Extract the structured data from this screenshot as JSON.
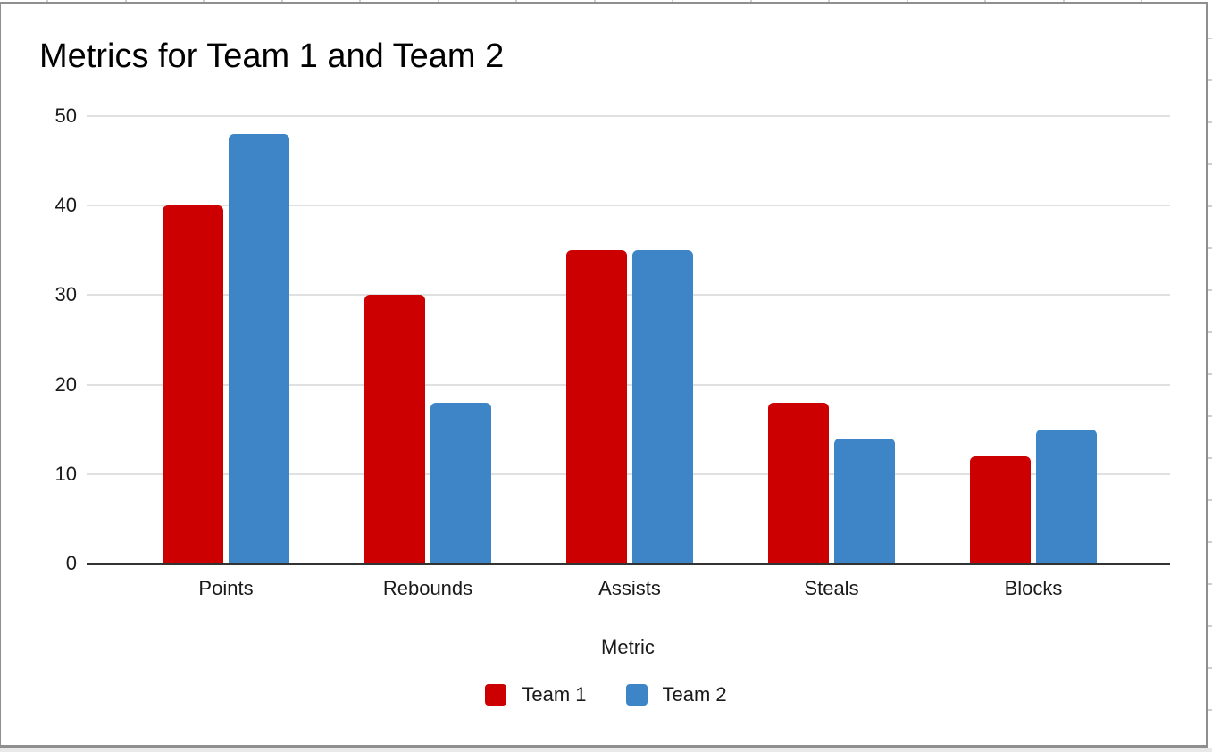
{
  "chart_data": {
    "type": "bar",
    "title": "Metrics for Team 1 and Team 2",
    "xlabel": "Metric",
    "ylabel": "",
    "categories": [
      "Points",
      "Rebounds",
      "Assists",
      "Steals",
      "Blocks"
    ],
    "series": [
      {
        "name": "Team 1",
        "color": "#CC0000",
        "values": [
          40,
          30,
          35,
          18,
          12
        ]
      },
      {
        "name": "Team 2",
        "color": "#3D85C6",
        "values": [
          48,
          18,
          35,
          14,
          15
        ]
      }
    ],
    "y_ticks": [
      0,
      10,
      20,
      30,
      40,
      50
    ],
    "ylim": [
      0,
      50
    ],
    "grid": "horizontal",
    "legend_position": "bottom",
    "gridline_color": "#e0e0e0",
    "axis_color": "#333333",
    "text_color": "#1a1a1a"
  }
}
